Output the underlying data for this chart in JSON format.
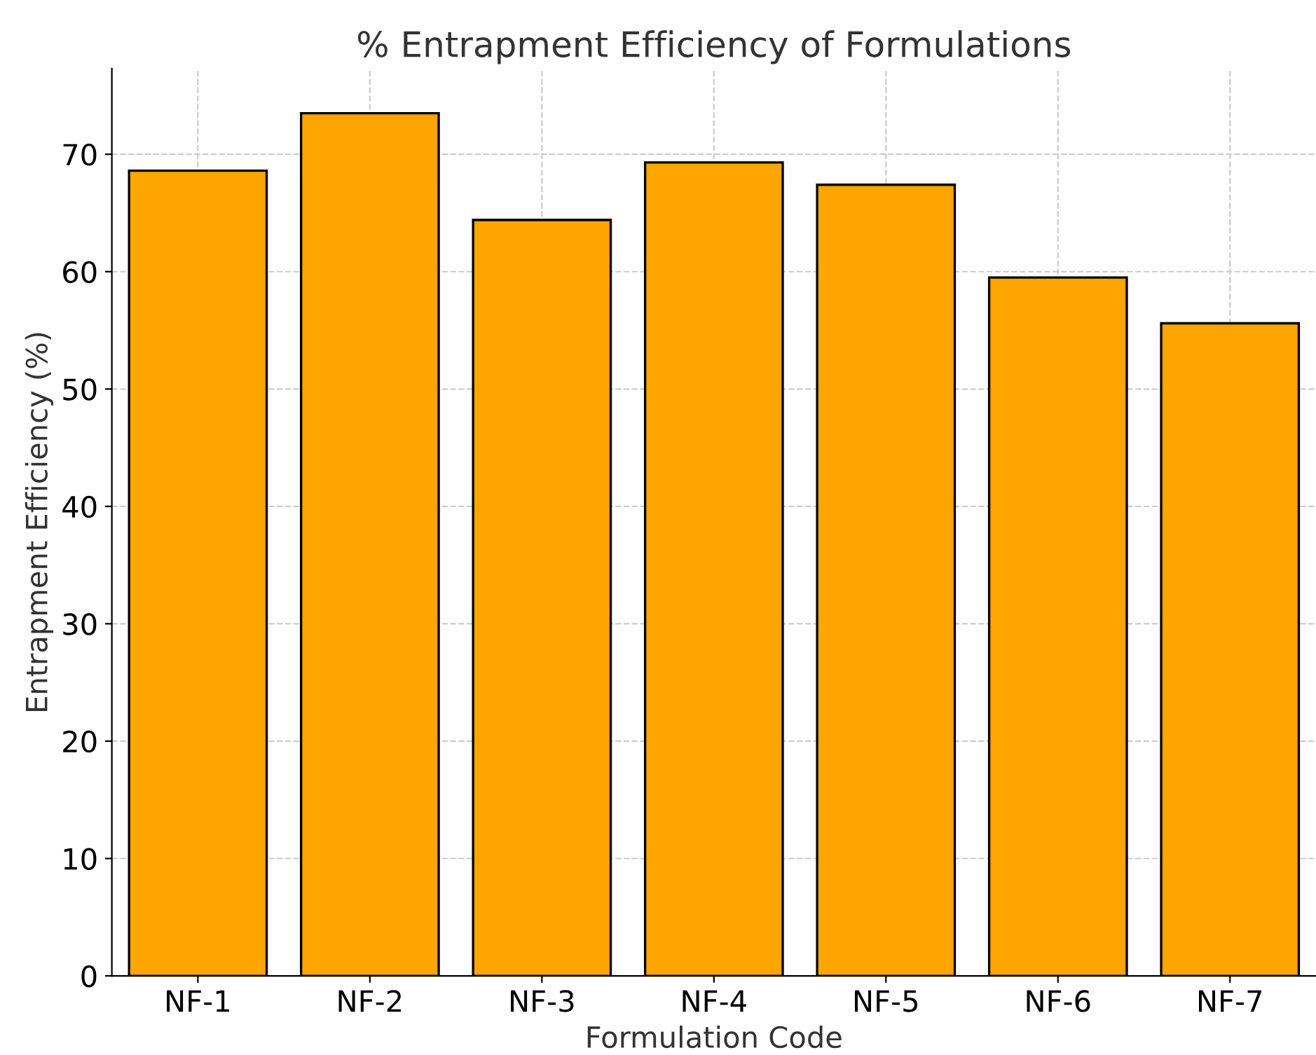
{
  "chart_data": {
    "type": "bar",
    "title": "% Entrapment Efficiency of Formulations",
    "xlabel": "Formulation Code",
    "ylabel": "Entrapment Efficiency (%)",
    "categories": [
      "NF-1",
      "NF-2",
      "NF-3",
      "NF-4",
      "NF-5",
      "NF-6",
      "NF-7"
    ],
    "values": [
      68.6,
      73.5,
      64.4,
      69.3,
      67.4,
      59.5,
      55.6
    ],
    "color": "#ffa500",
    "ylim": [
      0,
      77.3
    ],
    "yticks": [
      0,
      10,
      20,
      30,
      40,
      50,
      60,
      70
    ],
    "grid": true,
    "legend": false
  }
}
